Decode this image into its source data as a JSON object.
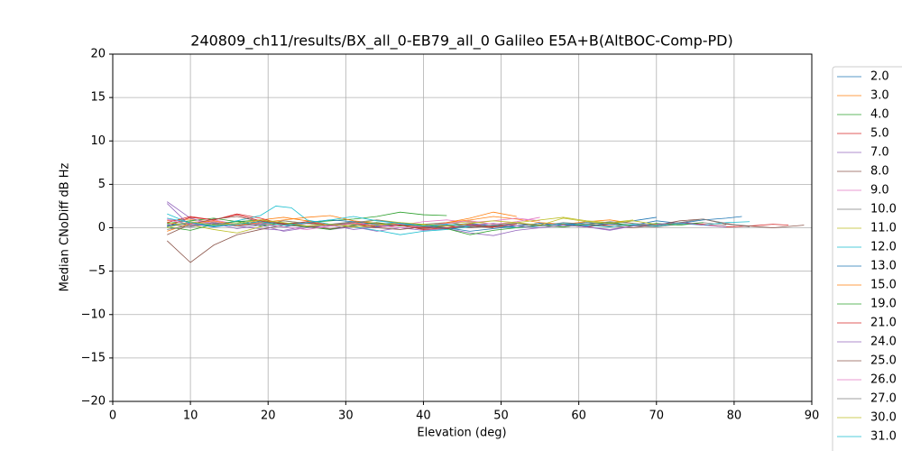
{
  "chart_data": {
    "type": "line",
    "title": "240809_ch11/results/BX_all_0-EB79_all_0 Galileo E5A+B(AltBOC-Comp-PD)",
    "xlabel": "Elevation (deg)",
    "ylabel": "Median CNoDiff dB Hz",
    "xlim": [
      0,
      90
    ],
    "ylim": [
      -20,
      20
    ],
    "xticks": [
      0,
      10,
      20,
      30,
      40,
      50,
      60,
      70,
      80,
      90
    ],
    "yticks": [
      {
        "value": -20,
        "label": "−20"
      },
      {
        "value": -15,
        "label": "−15"
      },
      {
        "value": -10,
        "label": "−10"
      },
      {
        "value": -5,
        "label": "−5"
      },
      0,
      5,
      10,
      15,
      20
    ],
    "grid": true,
    "series": [
      {
        "name": "2.0",
        "color": "#1f77b4",
        "x": [
          7,
          10,
          13,
          16,
          19,
          22,
          25,
          28,
          31,
          34,
          37,
          40,
          43,
          46,
          49,
          52,
          55,
          58,
          61,
          64,
          67,
          70,
          73,
          76,
          79,
          81
        ],
        "values": [
          0.3,
          0.6,
          0.2,
          0.8,
          0.4,
          0.1,
          0.5,
          0.3,
          0.7,
          0.2,
          0.4,
          0.1,
          0.3,
          0.5,
          0.2,
          0.0,
          0.3,
          0.4,
          0.2,
          0.5,
          0.3,
          0.8,
          0.5,
          0.9,
          1.1,
          1.3
        ]
      },
      {
        "name": "3.0",
        "color": "#ff7f0e",
        "x": [
          7,
          10,
          13,
          16,
          19,
          22,
          25,
          28,
          31,
          34,
          37,
          40,
          43,
          46,
          49,
          52,
          55,
          58,
          61,
          64,
          67
        ],
        "values": [
          0.8,
          1.0,
          0.6,
          0.2,
          0.9,
          1.2,
          0.8,
          0.4,
          0.6,
          0.3,
          0.5,
          0.2,
          0.6,
          0.9,
          1.3,
          1.0,
          0.6,
          0.4,
          0.7,
          0.9,
          0.5
        ]
      },
      {
        "name": "4.0",
        "color": "#2ca02c",
        "x": [
          7,
          10,
          13,
          16,
          19,
          22,
          25,
          28,
          31,
          34,
          37,
          40,
          43
        ],
        "values": [
          0.5,
          0.8,
          1.1,
          0.7,
          0.9,
          0.5,
          0.6,
          0.8,
          1.0,
          1.3,
          1.8,
          1.5,
          1.4
        ]
      },
      {
        "name": "5.0",
        "color": "#d62728",
        "x": [
          7,
          10,
          13,
          16,
          19,
          22,
          25,
          28,
          31,
          34,
          37,
          40,
          43,
          46,
          49,
          52,
          55,
          58,
          61,
          64,
          67,
          70,
          73,
          76,
          79,
          82,
          85,
          87
        ],
        "values": [
          0.2,
          1.2,
          0.9,
          1.6,
          1.1,
          0.4,
          0.7,
          0.3,
          0.5,
          0.1,
          0.3,
          0.0,
          0.2,
          0.4,
          0.1,
          0.2,
          0.5,
          0.3,
          0.1,
          0.4,
          0.2,
          0.3,
          0.6,
          0.4,
          0.1,
          0.2,
          0.4,
          0.3
        ]
      },
      {
        "name": "7.0",
        "color": "#9467bd",
        "x": [
          7,
          10,
          13,
          16,
          19,
          22,
          25,
          28,
          31,
          34,
          37,
          40,
          43,
          46,
          49,
          52,
          55,
          58,
          61,
          64,
          67,
          70
        ],
        "values": [
          3.0,
          1.1,
          0.4,
          0.2,
          -0.1,
          -0.3,
          0.2,
          -0.2,
          0.1,
          -0.4,
          0.0,
          -0.3,
          -0.1,
          -0.6,
          -0.9,
          -0.3,
          0.0,
          0.3,
          0.1,
          -0.3,
          0.2,
          0.4
        ]
      },
      {
        "name": "8.0",
        "color": "#8c564b",
        "x": [
          7,
          10,
          13,
          16,
          19,
          22,
          25,
          28,
          31,
          34,
          37,
          40,
          43,
          46,
          49,
          52,
          55,
          58,
          61,
          64,
          67,
          70,
          73,
          76,
          79,
          82,
          85,
          89
        ],
        "values": [
          -1.5,
          -4.0,
          -2.0,
          -0.8,
          -0.2,
          0.3,
          0.6,
          0.2,
          0.4,
          0.1,
          0.3,
          -0.1,
          0.2,
          0.0,
          0.2,
          0.5,
          0.3,
          0.1,
          0.4,
          0.2,
          0.0,
          0.3,
          0.8,
          1.0,
          0.4,
          0.2,
          0.0,
          0.3
        ]
      },
      {
        "name": "9.0",
        "color": "#e377c2",
        "x": [
          7,
          10,
          13,
          16,
          19,
          22,
          25,
          28,
          31,
          34,
          37,
          40,
          43,
          46,
          49,
          52,
          55
        ],
        "values": [
          1.0,
          0.6,
          0.9,
          0.4,
          0.7,
          0.3,
          0.5,
          0.2,
          0.4,
          0.6,
          0.3,
          0.7,
          0.9,
          0.6,
          0.8,
          1.1,
          0.8
        ]
      },
      {
        "name": "10.0",
        "color": "#7f7f7f",
        "x": [
          7,
          10,
          13,
          16,
          19,
          22,
          25,
          28,
          31,
          34,
          37,
          40,
          43,
          46,
          49,
          52,
          55,
          58,
          61,
          64,
          67,
          70,
          73,
          76,
          79
        ],
        "values": [
          0.4,
          0.1,
          0.5,
          0.2,
          0.6,
          0.3,
          0.1,
          0.4,
          0.7,
          0.5,
          0.2,
          0.4,
          0.6,
          0.3,
          0.1,
          0.2,
          0.5,
          0.3,
          0.6,
          0.4,
          0.2,
          0.1,
          0.4,
          0.6,
          0.3
        ]
      },
      {
        "name": "11.0",
        "color": "#bcbd22",
        "x": [
          7,
          10,
          13,
          16,
          19,
          22,
          25,
          28,
          31,
          34,
          37,
          40,
          43,
          46,
          49,
          52,
          55,
          58,
          61,
          64,
          67
        ],
        "values": [
          0.6,
          0.3,
          -0.2,
          -0.6,
          0.1,
          0.8,
          0.5,
          0.2,
          0.4,
          0.9,
          0.6,
          0.3,
          0.5,
          0.7,
          0.4,
          0.6,
          0.9,
          1.2,
          0.8,
          0.6,
          0.9
        ]
      },
      {
        "name": "12.0",
        "color": "#17becf",
        "x": [
          7,
          10,
          13,
          16,
          19,
          21,
          23,
          25,
          28,
          31,
          34,
          37,
          40,
          43,
          46,
          49,
          52,
          55,
          58,
          61,
          64,
          67,
          70,
          73,
          76,
          79,
          82
        ],
        "values": [
          1.6,
          0.5,
          0.3,
          0.8,
          1.4,
          2.5,
          2.3,
          0.9,
          0.4,
          0.1,
          -0.3,
          -0.8,
          -0.4,
          -0.2,
          0.1,
          0.3,
          0.0,
          0.2,
          0.5,
          0.3,
          0.1,
          0.4,
          0.2,
          0.5,
          0.3,
          0.6,
          0.7
        ]
      },
      {
        "name": "13.0",
        "color": "#1f77b4",
        "x": [
          7,
          10,
          13,
          16,
          19,
          22,
          25,
          28,
          31,
          34,
          37,
          40,
          43,
          46,
          49,
          52,
          55,
          58,
          61,
          64,
          67,
          70
        ],
        "values": [
          0.2,
          0.5,
          0.1,
          0.4,
          0.7,
          0.3,
          0.6,
          0.9,
          0.7,
          0.4,
          0.6,
          0.2,
          0.0,
          -0.4,
          -0.1,
          0.2,
          0.5,
          0.3,
          0.6,
          0.4,
          0.8,
          1.2
        ]
      },
      {
        "name": "15.0",
        "color": "#ff7f0e",
        "x": [
          7,
          10,
          13,
          16,
          19,
          22,
          25,
          28,
          31,
          34,
          37,
          40,
          43,
          46,
          49,
          52
        ],
        "values": [
          -0.4,
          0.5,
          0.8,
          0.3,
          0.6,
          0.9,
          1.2,
          1.4,
          0.8,
          0.5,
          0.3,
          0.1,
          0.6,
          1.1,
          1.8,
          1.3
        ]
      },
      {
        "name": "19.0",
        "color": "#2ca02c",
        "x": [
          7,
          10,
          13,
          16,
          19,
          22,
          25,
          28,
          31,
          34,
          37,
          40,
          43,
          46,
          49,
          52,
          55,
          58,
          61,
          64,
          67,
          70,
          73,
          76
        ],
        "values": [
          0.1,
          -0.3,
          0.4,
          0.7,
          0.2,
          0.5,
          0.1,
          -0.2,
          0.3,
          0.6,
          0.2,
          0.4,
          -0.1,
          -0.8,
          -0.3,
          0.0,
          0.3,
          0.1,
          0.4,
          0.6,
          0.2,
          0.5,
          0.3,
          0.6
        ]
      },
      {
        "name": "21.0",
        "color": "#d62728",
        "x": [
          7,
          10,
          13,
          16,
          19,
          22,
          25,
          28,
          31,
          34,
          37,
          40,
          43,
          46,
          49,
          52
        ],
        "values": [
          0.6,
          1.3,
          0.9,
          1.5,
          0.8,
          0.4,
          0.6,
          0.2,
          0.5,
          0.1,
          0.3,
          -0.2,
          0.0,
          0.3,
          0.1,
          0.4
        ]
      },
      {
        "name": "24.0",
        "color": "#9467bd",
        "x": [
          7,
          10,
          13,
          16,
          19,
          22,
          25,
          28,
          31,
          34,
          37,
          40,
          43,
          46,
          49,
          52,
          55,
          58,
          61,
          64,
          67,
          70,
          73,
          76,
          79
        ],
        "values": [
          2.8,
          0.2,
          0.5,
          -0.1,
          0.3,
          -0.4,
          0.0,
          0.3,
          -0.2,
          0.1,
          0.4,
          0.2,
          -0.1,
          0.3,
          0.5,
          0.2,
          0.0,
          0.3,
          0.1,
          -0.2,
          0.2,
          0.4,
          0.6,
          0.3,
          0.1
        ]
      },
      {
        "name": "25.0",
        "color": "#8c564b",
        "x": [
          7,
          10,
          13,
          16,
          19,
          22,
          25,
          28,
          31,
          34,
          37,
          40,
          43,
          46,
          49
        ],
        "values": [
          -0.8,
          0.4,
          1.0,
          1.3,
          0.7,
          0.5,
          0.2,
          -0.1,
          0.2,
          0.0,
          -0.2,
          0.1,
          -0.1,
          0.2,
          0.0
        ]
      },
      {
        "name": "26.0",
        "color": "#e377c2",
        "x": [
          7,
          10,
          13,
          16,
          19,
          22,
          25,
          28,
          31,
          34,
          37,
          40,
          43,
          46,
          49,
          52,
          55
        ],
        "values": [
          0.9,
          0.4,
          0.7,
          0.2,
          0.5,
          0.1,
          -0.2,
          0.2,
          0.5,
          0.3,
          0.0,
          0.2,
          0.5,
          0.8,
          0.4,
          0.7,
          1.2
        ]
      },
      {
        "name": "27.0",
        "color": "#7f7f7f",
        "x": [
          7,
          10,
          13,
          16,
          19,
          22,
          25,
          28,
          31,
          34,
          37,
          40,
          43,
          46,
          49,
          52,
          55,
          58,
          61,
          64,
          67,
          70,
          73,
          76,
          79,
          82
        ],
        "values": [
          -0.2,
          0.3,
          0.6,
          0.2,
          0.4,
          0.8,
          0.5,
          0.3,
          0.6,
          0.9,
          0.5,
          0.2,
          0.4,
          0.1,
          0.3,
          0.5,
          0.2,
          0.6,
          0.4,
          0.7,
          0.5,
          0.3,
          0.6,
          1.0,
          0.5,
          0.1
        ]
      },
      {
        "name": "30.0",
        "color": "#bcbd22",
        "x": [
          7,
          10,
          13,
          16,
          19,
          22,
          25,
          28,
          31,
          34,
          37,
          40,
          43,
          46,
          49,
          52,
          55,
          58,
          61,
          64,
          67,
          70
        ],
        "values": [
          0.0,
          0.7,
          0.3,
          0.5,
          0.9,
          0.6,
          0.2,
          0.4,
          0.1,
          0.3,
          0.6,
          0.4,
          0.2,
          0.5,
          0.8,
          0.6,
          0.3,
          1.1,
          0.7,
          0.5,
          0.8,
          0.4
        ]
      },
      {
        "name": "31.0",
        "color": "#17becf",
        "x": [
          7,
          10,
          13,
          16,
          19,
          22,
          25,
          28,
          31,
          34,
          37,
          40,
          43,
          46
        ],
        "values": [
          1.1,
          0.6,
          0.2,
          0.4,
          0.7,
          0.3,
          0.6,
          0.9,
          1.3,
          0.8,
          0.5,
          0.2,
          0.4,
          0.1
        ]
      }
    ]
  }
}
